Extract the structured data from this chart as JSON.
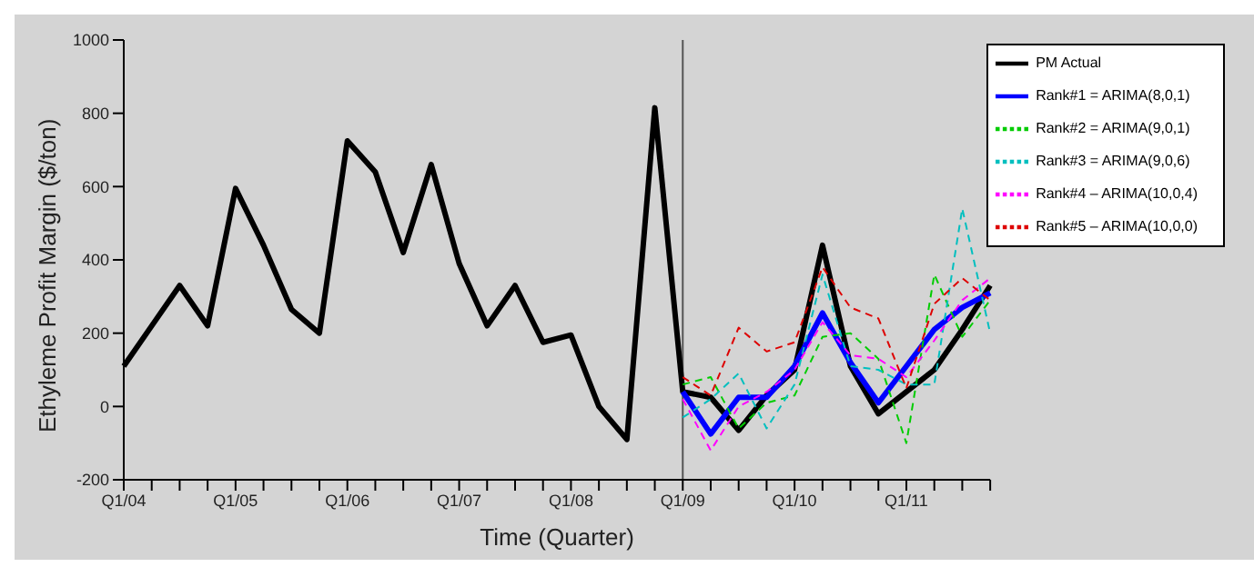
{
  "chart_data": {
    "type": "line",
    "xlabel": "Time (Quarter)",
    "ylabel": "Ethyleme Profit Margin ($/ton)",
    "categories": [
      "Q1/04",
      null,
      null,
      null,
      "Q1/05",
      null,
      null,
      null,
      "Q1/06",
      null,
      null,
      null,
      "Q1/07",
      null,
      null,
      null,
      "Q1/08",
      null,
      null,
      null,
      "Q1/09",
      null,
      null,
      null,
      "Q1/10",
      null,
      null,
      null,
      "Q1/11",
      null,
      null,
      null
    ],
    "ylim": [
      -200,
      1000
    ],
    "yticks": [
      -200,
      0,
      200,
      400,
      600,
      800,
      1000
    ],
    "legend": "top right",
    "grid": false,
    "marker": "none",
    "ref_lines": [
      {
        "axis": "x",
        "value": "Q1/09",
        "color": "#555555"
      }
    ],
    "series": [
      {
        "name": "PM Actual",
        "color": "#000000",
        "line_style": "solid",
        "values": [
          110,
          220,
          330,
          220,
          595,
          440,
          265,
          200,
          725,
          640,
          420,
          660,
          390,
          220,
          330,
          175,
          195,
          0,
          -90,
          815,
          40,
          25,
          -65,
          30,
          100,
          440,
          110,
          -20,
          40,
          100,
          210,
          330
        ]
      },
      {
        "name": "Rank#1 = ARIMA(8,0,1)",
        "color": "#0000ff",
        "line_style": "solid",
        "values": [
          null,
          null,
          null,
          null,
          null,
          null,
          null,
          null,
          null,
          null,
          null,
          null,
          null,
          null,
          null,
          null,
          null,
          null,
          null,
          null,
          40,
          -75,
          25,
          25,
          110,
          255,
          120,
          10,
          110,
          210,
          270,
          310
        ]
      },
      {
        "name": "Rank#2 = ARIMA(9,0,1)",
        "color": "#00cc00",
        "line_style": "dashed",
        "values": [
          null,
          null,
          null,
          null,
          null,
          null,
          null,
          null,
          null,
          null,
          null,
          null,
          null,
          null,
          null,
          null,
          null,
          null,
          null,
          null,
          60,
          80,
          -60,
          10,
          30,
          190,
          200,
          130,
          -100,
          360,
          190,
          290
        ]
      },
      {
        "name": "Rank#3 = ARIMA(9,0,6)",
        "color": "#00bfbf",
        "line_style": "dashed",
        "values": [
          null,
          null,
          null,
          null,
          null,
          null,
          null,
          null,
          null,
          null,
          null,
          null,
          null,
          null,
          null,
          null,
          null,
          null,
          null,
          null,
          -30,
          20,
          90,
          -60,
          60,
          360,
          110,
          100,
          60,
          60,
          540,
          200
        ]
      },
      {
        "name": "Rank#4 – ARIMA(10,0,4)",
        "color": "#ff00ff",
        "line_style": "dashed",
        "values": [
          null,
          null,
          null,
          null,
          null,
          null,
          null,
          null,
          null,
          null,
          null,
          null,
          null,
          null,
          null,
          null,
          null,
          null,
          null,
          null,
          20,
          -120,
          0,
          40,
          100,
          230,
          140,
          130,
          80,
          180,
          290,
          350
        ]
      },
      {
        "name": "Rank#5 – ARIMA(10,0,0)",
        "color": "#dd0000",
        "line_style": "dashed",
        "values": [
          null,
          null,
          null,
          null,
          null,
          null,
          null,
          null,
          null,
          null,
          null,
          null,
          null,
          null,
          null,
          null,
          null,
          null,
          null,
          null,
          80,
          30,
          215,
          150,
          175,
          380,
          270,
          240,
          50,
          280,
          350,
          290
        ]
      }
    ]
  }
}
